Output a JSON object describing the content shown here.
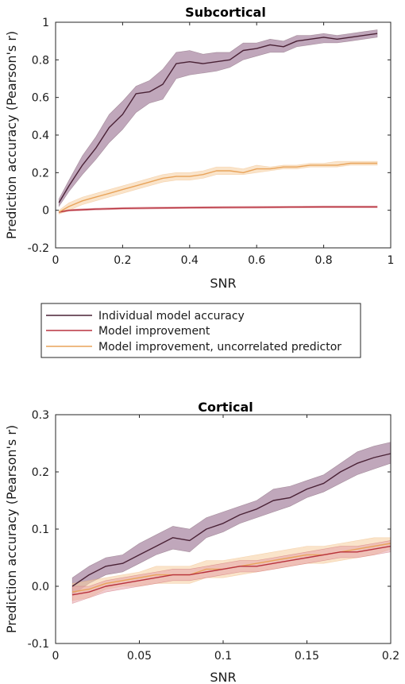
{
  "legend": {
    "items": [
      {
        "label": "Individual model accuracy",
        "color": "#4a2236"
      },
      {
        "label": "Model improvement",
        "color": "#b8323e"
      },
      {
        "label": "Model improvement, uncorrelated predictor",
        "color": "#e8a35a"
      }
    ]
  },
  "chart_data": [
    {
      "type": "line",
      "title": "Subcortical",
      "xlabel": "SNR",
      "ylabel": "Prediction accuracy (Pearson's r)",
      "xlim": [
        0,
        1
      ],
      "ylim": [
        -0.2,
        1
      ],
      "xticks": [
        "0",
        "0.2",
        "0.4",
        "0.6",
        "0.8",
        "1"
      ],
      "yticks": [
        "-0.2",
        "0",
        "0.2",
        "0.4",
        "0.6",
        "0.8",
        "1"
      ],
      "grid": false,
      "series": [
        {
          "name": "Individual model accuracy",
          "color": "#4a2236",
          "fill": "#8c5e84",
          "x": [
            0.01,
            0.04,
            0.08,
            0.12,
            0.16,
            0.2,
            0.24,
            0.28,
            0.32,
            0.36,
            0.4,
            0.44,
            0.48,
            0.52,
            0.56,
            0.6,
            0.64,
            0.68,
            0.72,
            0.76,
            0.8,
            0.84,
            0.88,
            0.92,
            0.96
          ],
          "values": [
            0.04,
            0.13,
            0.24,
            0.33,
            0.44,
            0.51,
            0.62,
            0.63,
            0.67,
            0.78,
            0.79,
            0.78,
            0.79,
            0.8,
            0.85,
            0.86,
            0.88,
            0.87,
            0.9,
            0.91,
            0.92,
            0.91,
            0.92,
            0.93,
            0.94
          ],
          "lower": [
            0.02,
            0.1,
            0.19,
            0.27,
            0.36,
            0.43,
            0.52,
            0.57,
            0.59,
            0.7,
            0.72,
            0.73,
            0.74,
            0.76,
            0.8,
            0.82,
            0.84,
            0.84,
            0.87,
            0.88,
            0.89,
            0.89,
            0.9,
            0.91,
            0.92
          ],
          "upper": [
            0.06,
            0.16,
            0.29,
            0.39,
            0.51,
            0.58,
            0.66,
            0.69,
            0.75,
            0.84,
            0.85,
            0.83,
            0.84,
            0.84,
            0.89,
            0.89,
            0.91,
            0.9,
            0.93,
            0.93,
            0.94,
            0.93,
            0.94,
            0.95,
            0.96
          ]
        },
        {
          "name": "Model improvement",
          "color": "#b8323e",
          "fill": "#e5a2a8",
          "x": [
            0.01,
            0.04,
            0.08,
            0.12,
            0.16,
            0.2,
            0.3,
            0.4,
            0.5,
            0.6,
            0.7,
            0.8,
            0.9,
            0.96
          ],
          "values": [
            -0.01,
            0.0,
            0.003,
            0.006,
            0.008,
            0.01,
            0.012,
            0.014,
            0.015,
            0.016,
            0.017,
            0.018,
            0.018,
            0.018
          ],
          "lower": [
            -0.015,
            -0.005,
            -0.002,
            0.001,
            0.003,
            0.005,
            0.007,
            0.009,
            0.01,
            0.011,
            0.012,
            0.013,
            0.013,
            0.013
          ],
          "upper": [
            -0.005,
            0.005,
            0.008,
            0.011,
            0.013,
            0.015,
            0.017,
            0.019,
            0.02,
            0.021,
            0.022,
            0.023,
            0.023,
            0.023
          ]
        },
        {
          "name": "Model improvement, uncorrelated predictor",
          "color": "#e8a35a",
          "fill": "#f5cd9f",
          "x": [
            0.01,
            0.04,
            0.08,
            0.12,
            0.16,
            0.2,
            0.24,
            0.28,
            0.32,
            0.36,
            0.4,
            0.44,
            0.48,
            0.52,
            0.56,
            0.6,
            0.64,
            0.68,
            0.72,
            0.76,
            0.8,
            0.84,
            0.88,
            0.92,
            0.96
          ],
          "values": [
            -0.01,
            0.02,
            0.05,
            0.07,
            0.09,
            0.11,
            0.13,
            0.15,
            0.17,
            0.18,
            0.18,
            0.19,
            0.21,
            0.21,
            0.2,
            0.22,
            0.22,
            0.23,
            0.23,
            0.24,
            0.24,
            0.24,
            0.25,
            0.25,
            0.25
          ],
          "lower": [
            -0.02,
            0.0,
            0.03,
            0.05,
            0.07,
            0.09,
            0.11,
            0.13,
            0.15,
            0.16,
            0.16,
            0.17,
            0.19,
            0.19,
            0.19,
            0.2,
            0.21,
            0.22,
            0.22,
            0.23,
            0.23,
            0.23,
            0.24,
            0.24,
            0.24
          ],
          "upper": [
            0.0,
            0.04,
            0.07,
            0.09,
            0.11,
            0.13,
            0.15,
            0.17,
            0.19,
            0.2,
            0.2,
            0.21,
            0.23,
            0.23,
            0.22,
            0.24,
            0.23,
            0.24,
            0.24,
            0.25,
            0.25,
            0.26,
            0.26,
            0.26,
            0.26
          ]
        }
      ]
    },
    {
      "type": "line",
      "title": "Cortical",
      "xlabel": "SNR",
      "ylabel": "Prediction accuracy (Pearson's r)",
      "xlim": [
        0,
        0.2
      ],
      "ylim": [
        -0.1,
        0.3
      ],
      "xticks": [
        "0",
        "0.05",
        "0.1",
        "0.15",
        "0.2"
      ],
      "yticks": [
        "-0.1",
        "0.0",
        "0.1",
        "0.2",
        "0.3"
      ],
      "grid": false,
      "series": [
        {
          "name": "Individual model accuracy",
          "color": "#4a2236",
          "fill": "#8c5e84",
          "x": [
            0.01,
            0.02,
            0.03,
            0.04,
            0.05,
            0.06,
            0.07,
            0.08,
            0.09,
            0.1,
            0.11,
            0.12,
            0.13,
            0.14,
            0.15,
            0.16,
            0.17,
            0.18,
            0.19,
            0.2
          ],
          "values": [
            0.0,
            0.02,
            0.035,
            0.04,
            0.055,
            0.07,
            0.085,
            0.08,
            0.1,
            0.11,
            0.125,
            0.135,
            0.15,
            0.155,
            0.17,
            0.18,
            0.2,
            0.215,
            0.225,
            0.232
          ],
          "lower": [
            -0.015,
            0.005,
            0.02,
            0.025,
            0.04,
            0.055,
            0.065,
            0.06,
            0.085,
            0.095,
            0.11,
            0.12,
            0.13,
            0.14,
            0.155,
            0.165,
            0.18,
            0.195,
            0.205,
            0.215
          ],
          "upper": [
            0.015,
            0.035,
            0.05,
            0.055,
            0.075,
            0.09,
            0.105,
            0.1,
            0.12,
            0.13,
            0.14,
            0.15,
            0.17,
            0.175,
            0.185,
            0.195,
            0.215,
            0.235,
            0.245,
            0.252
          ]
        },
        {
          "name": "Model improvement, uncorrelated predictor",
          "color": "#e8a35a",
          "fill": "#f5cd9f",
          "x": [
            0.01,
            0.02,
            0.03,
            0.04,
            0.05,
            0.06,
            0.07,
            0.08,
            0.09,
            0.1,
            0.11,
            0.12,
            0.13,
            0.14,
            0.15,
            0.16,
            0.17,
            0.18,
            0.19,
            0.2
          ],
          "values": [
            -0.01,
            -0.005,
            0.005,
            0.01,
            0.015,
            0.02,
            0.02,
            0.02,
            0.03,
            0.03,
            0.035,
            0.04,
            0.045,
            0.05,
            0.055,
            0.055,
            0.06,
            0.065,
            0.07,
            0.075
          ],
          "lower": [
            -0.025,
            -0.02,
            -0.005,
            0.0,
            0.0,
            0.005,
            0.005,
            0.005,
            0.015,
            0.015,
            0.02,
            0.025,
            0.03,
            0.035,
            0.04,
            0.04,
            0.045,
            0.05,
            0.055,
            0.065
          ],
          "upper": [
            0.005,
            0.01,
            0.015,
            0.02,
            0.025,
            0.035,
            0.035,
            0.035,
            0.045,
            0.045,
            0.05,
            0.055,
            0.06,
            0.065,
            0.07,
            0.07,
            0.075,
            0.08,
            0.085,
            0.085
          ]
        },
        {
          "name": "Model improvement",
          "color": "#b8323e",
          "fill": "#e5a2a8",
          "x": [
            0.01,
            0.02,
            0.03,
            0.04,
            0.05,
            0.06,
            0.07,
            0.08,
            0.09,
            0.1,
            0.11,
            0.12,
            0.13,
            0.14,
            0.15,
            0.16,
            0.17,
            0.18,
            0.19,
            0.2
          ],
          "values": [
            -0.015,
            -0.01,
            0.0,
            0.005,
            0.01,
            0.015,
            0.02,
            0.02,
            0.025,
            0.03,
            0.035,
            0.035,
            0.04,
            0.045,
            0.05,
            0.055,
            0.06,
            0.06,
            0.065,
            0.07
          ],
          "lower": [
            -0.03,
            -0.02,
            -0.01,
            -0.005,
            0.0,
            0.005,
            0.01,
            0.01,
            0.015,
            0.02,
            0.025,
            0.025,
            0.03,
            0.035,
            0.04,
            0.045,
            0.05,
            0.05,
            0.055,
            0.06
          ],
          "upper": [
            0.0,
            0.0,
            0.01,
            0.015,
            0.02,
            0.025,
            0.03,
            0.03,
            0.035,
            0.04,
            0.045,
            0.045,
            0.05,
            0.055,
            0.06,
            0.065,
            0.07,
            0.07,
            0.075,
            0.08
          ]
        }
      ]
    }
  ]
}
